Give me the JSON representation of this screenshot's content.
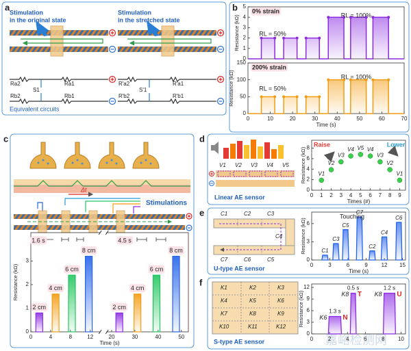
{
  "panel_labels": [
    "a",
    "b",
    "c",
    "d",
    "e",
    "f"
  ],
  "diagrams": {
    "a": {
      "titles": [
        [
          "Stimulation",
          "in the original state"
        ],
        [
          "Stimulation",
          "in the stretched state"
        ]
      ],
      "circuit_labels": [
        "Ra2",
        "S1",
        "Ra1",
        "Rb2",
        "Rb1",
        "R'a2",
        "S'1",
        "R'a1",
        "R'b2",
        "R'b1"
      ],
      "caption": "Equivalent circuits"
    },
    "c": {
      "delta": "Δt",
      "caption": "Stimulations"
    },
    "d": {
      "labels": [
        "V1",
        "V2",
        "V3",
        "V4",
        "V5"
      ],
      "caption": "Linear AE sensor"
    },
    "e": {
      "labels": [
        "C1",
        "C2",
        "C3",
        "C4",
        "C5",
        "C6",
        "C7"
      ],
      "caption": "U-type AE sensor"
    },
    "f": {
      "labels": [
        "K1",
        "K2",
        "K3",
        "K4",
        "K5",
        "K6",
        "K7",
        "K8",
        "K9",
        "K10",
        "K11",
        "K12"
      ],
      "caption": "S-type AE sensor"
    },
    "watermark": "嘉峪检测网"
  },
  "chart_data": [
    {
      "type": "line",
      "title": "0% strain",
      "ylabel": "Resistance (kΩ)",
      "x": [
        0,
        6,
        6,
        12,
        12,
        16,
        16,
        22,
        22,
        26,
        26,
        32,
        32,
        36,
        36,
        43,
        43,
        46,
        46,
        53,
        53,
        56,
        56,
        63,
        63,
        70
      ],
      "values": [
        0,
        0,
        2,
        2,
        0,
        0,
        2,
        2,
        0,
        0,
        2,
        2,
        0,
        0,
        4,
        4,
        0,
        0,
        4,
        4,
        0,
        0,
        4,
        4,
        0,
        0
      ],
      "color": "#8b2be2",
      "markers": true,
      "xlim": [
        0,
        70
      ],
      "ylim": [
        0,
        5
      ],
      "yticks": [
        0,
        1,
        2,
        3,
        4,
        5
      ],
      "annotations": [
        "RL = 50%",
        "RL = 100%"
      ]
    },
    {
      "type": "line",
      "title": "200% strain",
      "ylabel": "Resistance (kΩ)",
      "xlabel": "Time (s)",
      "x": [
        0,
        6,
        6,
        12,
        12,
        16,
        16,
        22,
        22,
        26,
        26,
        32,
        32,
        36,
        36,
        43,
        43,
        46,
        46,
        53,
        53,
        56,
        56,
        63,
        63,
        70
      ],
      "values": [
        0,
        0,
        50,
        50,
        0,
        0,
        50,
        50,
        0,
        0,
        50,
        50,
        0,
        0,
        100,
        100,
        0,
        0,
        100,
        100,
        0,
        0,
        100,
        100,
        0,
        0
      ],
      "color": "#f39c12",
      "markers": true,
      "xlim": [
        0,
        70
      ],
      "xticks": [
        0,
        10,
        20,
        30,
        40,
        50,
        60,
        70
      ],
      "ylim": [
        0,
        150
      ],
      "yticks": [
        0,
        50,
        100,
        150
      ],
      "annotations": [
        "RL = 50%",
        "RL = 100%"
      ]
    },
    {
      "type": "bar",
      "ylabel": "Resistance (kΩ)",
      "xlabel": "Time (s)",
      "x": [
        1.7,
        5,
        8.3,
        11.7,
        23.3,
        31.1,
        39.3,
        47.7
      ],
      "values": [
        0.8,
        1.6,
        2.4,
        3.2,
        0.8,
        1.6,
        2.4,
        3.2
      ],
      "bar_labels": [
        "2 cm",
        "4 cm",
        "6 cm",
        "8 cm",
        "2 cm",
        "4 cm",
        "6 cm",
        "8 cm"
      ],
      "colors": [
        "#8b2be2",
        "#f39c12",
        "#22c55e",
        "#2563eb",
        "#8b2be2",
        "#f39c12",
        "#22c55e",
        "#2563eb"
      ],
      "xlim": [
        0,
        53
      ],
      "x_break": [
        14,
        18
      ],
      "xticks": [
        0,
        4,
        8,
        12,
        20,
        30,
        40,
        50
      ],
      "ylim": [
        0,
        4.2
      ],
      "yticks": [
        0,
        1,
        2,
        3
      ],
      "annotations": [
        "1.6 s",
        "4.5 s"
      ]
    },
    {
      "type": "scatter",
      "ylabel": "Resistance (kΩ)",
      "xlabel": "Times (#)",
      "x": [
        1,
        2,
        3,
        4,
        5,
        6,
        7,
        8,
        9
      ],
      "values": [
        1.9,
        3.9,
        5.4,
        6.5,
        6.8,
        6.5,
        5.4,
        3.9,
        1.9
      ],
      "point_labels": [
        "V1",
        "V2",
        "V3",
        "V4",
        "V5",
        "V4",
        "V3",
        "V2",
        "V1"
      ],
      "color": "#3ccf4e",
      "xlim": [
        0,
        9.6
      ],
      "xticks": [
        0,
        1,
        2,
        3,
        4,
        5,
        6,
        7,
        8,
        9
      ],
      "ylim": [
        0,
        9.5
      ],
      "yticks": [
        0,
        2,
        4,
        6,
        8
      ],
      "annotations": [
        "Raise",
        "Lower"
      ]
    },
    {
      "type": "pulse",
      "ylabel": "Resistance (kΩ)",
      "xlabel": "Time (s)",
      "x": [
        2.2,
        4,
        5.6,
        7.9,
        10,
        12,
        14.4
      ],
      "values": [
        0.8,
        2.7,
        5.0,
        7.1,
        1.5,
        3.8,
        6.2
      ],
      "point_labels": [
        "C1",
        "C3",
        "C5",
        "C7",
        "C2",
        "C4",
        "C6"
      ],
      "color": "#2563eb",
      "xlim": [
        0,
        15.5
      ],
      "xticks": [
        0,
        3,
        6,
        9,
        12,
        15
      ],
      "ylim": [
        0,
        7.9
      ],
      "yticks": [
        0,
        3,
        6
      ],
      "annotations": [
        "Touching"
      ]
    },
    {
      "type": "pulse",
      "ylabel": "Resistance (kΩ)",
      "x": [
        2.6,
        4.65,
        8.7
      ],
      "durations": [
        1.3,
        0.5,
        1.2
      ],
      "duration_labels": [
        "1.3 s",
        "0.5 s",
        "1.2 s"
      ],
      "values": [
        4.5,
        10.5,
        10.5
      ],
      "point_labels": [
        "K6",
        "K8",
        "K8"
      ],
      "letters": [
        "N",
        "T",
        "U"
      ],
      "color": "#8b2be2",
      "xlim": [
        0,
        10.5
      ],
      "xticks": [
        0,
        2,
        4,
        6,
        8,
        10
      ],
      "ylim": [
        0,
        12.9
      ],
      "yticks": [
        0,
        3,
        6,
        9,
        12
      ]
    }
  ]
}
